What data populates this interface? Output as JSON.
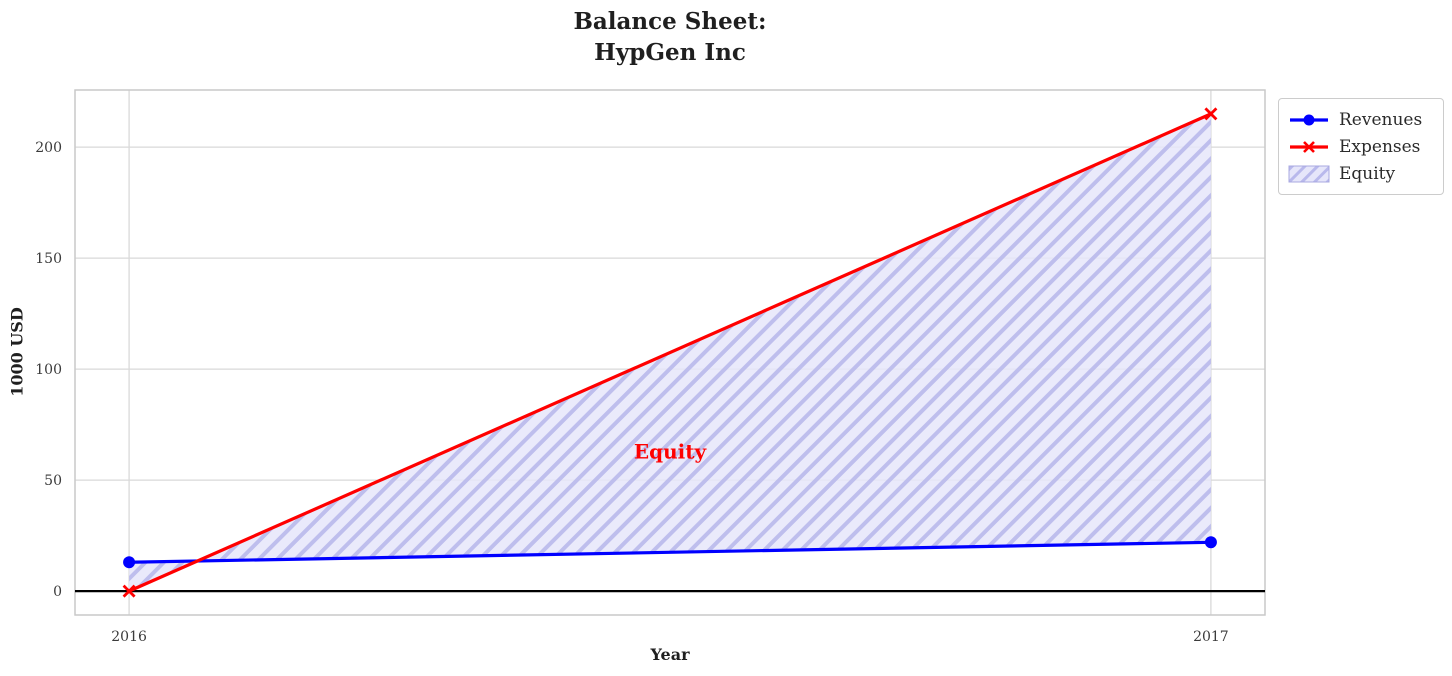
{
  "title": {
    "line1": "Balance Sheet:",
    "line2": "HypGen Inc"
  },
  "chart_data": {
    "type": "line",
    "x": [
      2016,
      2017
    ],
    "series": [
      {
        "name": "Revenues",
        "values": [
          13,
          22
        ],
        "color": "#0000ff",
        "marker": "circle"
      },
      {
        "name": "Expenses",
        "values": [
          0,
          215
        ],
        "color": "#ff0000",
        "marker": "x"
      }
    ],
    "fill_between": {
      "name": "Equity",
      "between": [
        "Revenues",
        "Expenses"
      ],
      "facecolor": "#e6e6fa",
      "hatch_color": "#b9b9ec",
      "hatch": "//"
    },
    "annotation": {
      "text": "Equity",
      "x": 2016.5,
      "y": 63,
      "color": "#ff0000"
    },
    "title": "Balance Sheet:\nHypGen Inc",
    "xlabel": "Year",
    "ylabel": "1000 USD",
    "xticks": [
      2016,
      2017
    ],
    "yticks": [
      0,
      50,
      100,
      150,
      200
    ],
    "xlim": [
      2015.95,
      2017.05
    ],
    "ylim": [
      -10.75,
      225.75
    ],
    "grid": true,
    "zero_line": true,
    "legend_position": "outside-upper-right",
    "grid_color": "#d9d9d9",
    "spine_color": "#c9c9c9",
    "tick_color": "#3b3b3b",
    "zero_line_color": "#000000"
  },
  "legend": {
    "items": [
      {
        "label": "Revenues"
      },
      {
        "label": "Expenses"
      },
      {
        "label": "Equity"
      }
    ]
  }
}
